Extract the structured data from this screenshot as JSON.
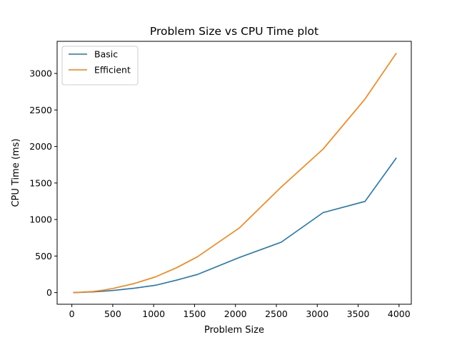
{
  "chart_data": {
    "type": "line",
    "title": "Problem Size vs CPU Time plot",
    "xlabel": "Problem Size",
    "ylabel": "CPU Time (ms)",
    "xlim": [
      -180,
      4150
    ],
    "ylim": [
      -160,
      3440
    ],
    "xticks": [
      0,
      500,
      1000,
      1500,
      2000,
      2500,
      3000,
      3500,
      4000
    ],
    "yticks": [
      0,
      500,
      1000,
      1500,
      2000,
      2500,
      3000
    ],
    "grid": false,
    "legend_position": "top-left",
    "series": [
      {
        "name": "Basic",
        "color": "#1f77b4",
        "points": [
          [
            16,
            0
          ],
          [
            64,
            2
          ],
          [
            128,
            4
          ],
          [
            256,
            9
          ],
          [
            384,
            18
          ],
          [
            512,
            30
          ],
          [
            768,
            60
          ],
          [
            1024,
            100
          ],
          [
            1280,
            170
          ],
          [
            1536,
            248
          ],
          [
            2048,
            480
          ],
          [
            2560,
            690
          ],
          [
            3072,
            1095
          ],
          [
            3584,
            1248
          ],
          [
            3968,
            1845
          ]
        ]
      },
      {
        "name": "Efficient",
        "color": "#ff7f0e",
        "points": [
          [
            16,
            0
          ],
          [
            64,
            2
          ],
          [
            128,
            5
          ],
          [
            256,
            14
          ],
          [
            384,
            32
          ],
          [
            512,
            58
          ],
          [
            768,
            125
          ],
          [
            1024,
            215
          ],
          [
            1280,
            340
          ],
          [
            1536,
            490
          ],
          [
            2048,
            885
          ],
          [
            2560,
            1445
          ],
          [
            3072,
            1965
          ],
          [
            3584,
            2650
          ],
          [
            3968,
            3280
          ]
        ]
      }
    ]
  }
}
